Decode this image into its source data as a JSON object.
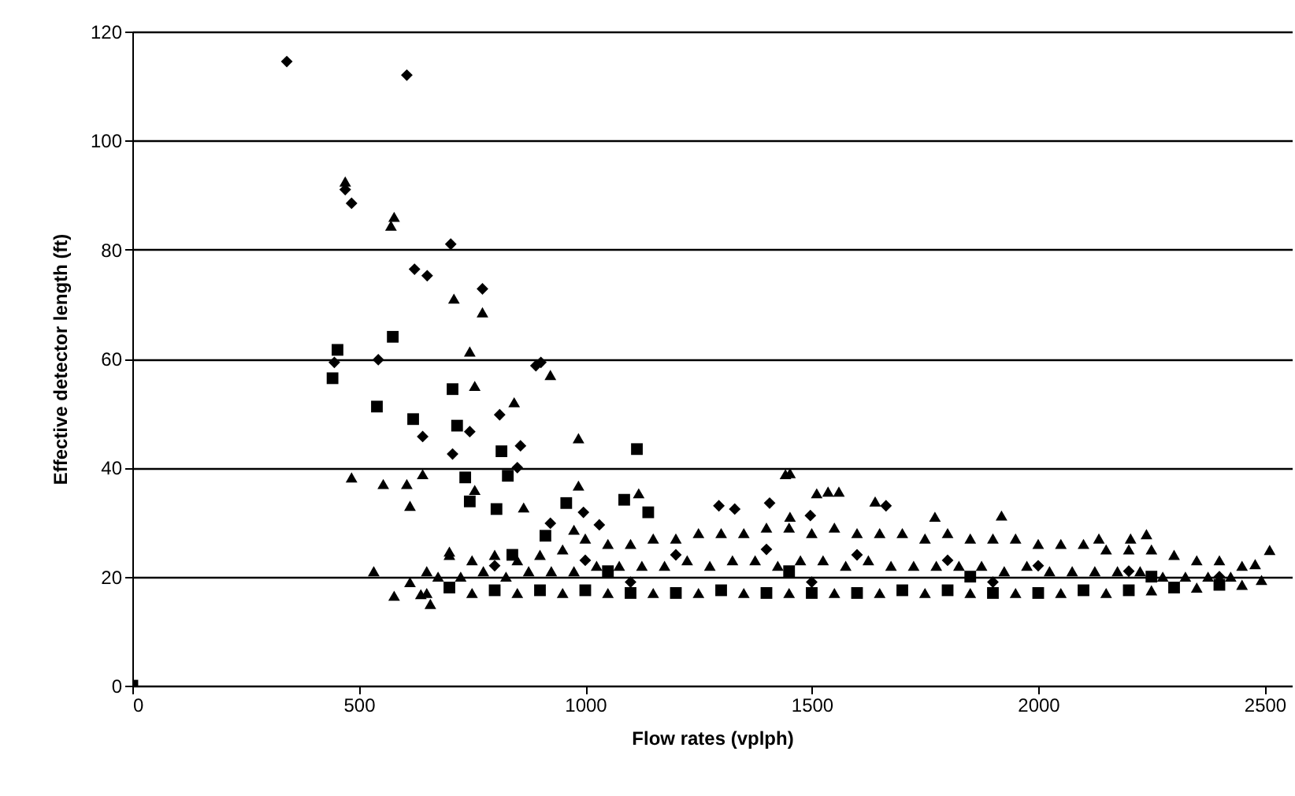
{
  "chart_data": {
    "type": "scatter",
    "xlabel": "Flow rates (vplph)",
    "ylabel": "Effective detector length (ft)",
    "xlim": [
      0,
      2560
    ],
    "xticks": [
      0,
      500,
      1000,
      1500,
      2000,
      2500
    ],
    "ylim": [
      0,
      120
    ],
    "yticks": [
      0,
      20,
      40,
      60,
      80,
      100,
      120
    ],
    "grid": "y",
    "series": [
      {
        "color": "#000000",
        "marker": "diamond",
        "x": [
          341,
          606,
          470,
          484,
          703,
          623,
          651,
          773,
          446,
          543,
          891,
          902,
          641,
          811,
          745,
          707,
          857,
          850,
          996,
          1031,
          923,
          1295,
          1330,
          1403,
          1407,
          1497,
          1664,
          800,
          1000,
          1200,
          1400,
          1600,
          1800,
          2000,
          2200,
          2400,
          1100,
          1500,
          1900
        ],
        "values": [
          114.5,
          112,
          91,
          88.5,
          81,
          76.4,
          75.2,
          72.8,
          59.3,
          59.8,
          58.7,
          59.3,
          45.7,
          49.7,
          46.6,
          42.5,
          44,
          40,
          31.8,
          29.5,
          29.8,
          33,
          32.4,
          null,
          33.5,
          31.2,
          33,
          22,
          23,
          24,
          25,
          24,
          23,
          22,
          21,
          20,
          19,
          19,
          19
        ]
      },
      {
        "color": "#000000",
        "marker": "square",
        "x": [
          0,
          575,
          453,
          442,
          707,
          540,
          620,
          717,
          1114,
          815,
          735,
          745,
          804,
          829,
          958,
          1086,
          1139,
          912,
          839,
          700,
          800,
          900,
          1000,
          1100,
          1200,
          1300,
          1400,
          1500,
          1600,
          1700,
          1800,
          1900,
          2000,
          2100,
          2200,
          2300,
          2400,
          1050,
          1450,
          1850,
          2250
        ],
        "values": [
          0,
          64,
          61.6,
          56.4,
          54.4,
          51.2,
          48.9,
          47.7,
          43.4,
          43,
          38.2,
          33.8,
          32.4,
          38.5,
          33.5,
          34.1,
          31.8,
          27.5,
          24,
          18,
          17.5,
          17.5,
          17.5,
          17,
          17,
          17.5,
          17,
          17,
          17,
          17.5,
          17.5,
          17,
          17,
          17.5,
          17.5,
          18,
          18.5,
          21,
          21,
          20,
          20
        ]
      },
      {
        "color": "#000000",
        "marker": "triangle",
        "x": [
          470,
          578,
          571,
          710,
          773,
          745,
          923,
          756,
          843,
          985,
          484,
          554,
          606,
          641,
          613,
          756,
          864,
          985,
          1118,
          975,
          1442,
          533,
          578,
          613,
          637,
          658,
          700,
          1452,
          1536,
          1560,
          1511,
          1640,
          1452,
          1919,
          1772,
          2239,
          2204,
          2134,
          2511,
          2479,
          2493,
          650,
          750,
          850,
          950,
          1050,
          1150,
          1250,
          1350,
          1450,
          1550,
          1650,
          1750,
          1850,
          1950,
          2050,
          2150,
          2250,
          2350,
          2450,
          700,
          800,
          900,
          1000,
          1100,
          1200,
          1300,
          1400,
          1500,
          1600,
          1700,
          1800,
          1900,
          2000,
          2100,
          2200,
          2300,
          2400,
          650,
          750,
          850,
          950,
          1050,
          1150,
          1250,
          1350,
          1450,
          1550,
          1650,
          1750,
          1850,
          1950,
          2050,
          2150,
          2250,
          2350,
          2450,
          675,
          725,
          775,
          825,
          875,
          925,
          975,
          1025,
          1075,
          1125,
          1175,
          1225,
          1275,
          1325,
          1375,
          1425,
          1475,
          1525,
          1575,
          1625,
          1675,
          1725,
          1775,
          1825,
          1875,
          1925,
          1975,
          2025,
          2075,
          2125,
          2175,
          2225,
          2275,
          2325,
          2375,
          2425
        ],
        "values": [
          92.5,
          86,
          84.4,
          71,
          68.5,
          61.3,
          57,
          55,
          52,
          45.4,
          38.2,
          37,
          37,
          38.8,
          33,
          35.9,
          32.7,
          36.7,
          35.3,
          28.6,
          38.8,
          21,
          16.5,
          19,
          16.8,
          15,
          24.6,
          39,
          35.6,
          35.6,
          35.3,
          33.8,
          31,
          31.2,
          31,
          27.8,
          27,
          27,
          24.9,
          22.3,
          19.4,
          21,
          23,
          23,
          25,
          26,
          27,
          28,
          28,
          29,
          29,
          28,
          27,
          27,
          27,
          26,
          25,
          25,
          23,
          22,
          24,
          24,
          24,
          27,
          26,
          27,
          28,
          29,
          28,
          28,
          28,
          28,
          27,
          26,
          26,
          25,
          24,
          23,
          17,
          17,
          17,
          17,
          17,
          17,
          17,
          17,
          17,
          17,
          17,
          17,
          17,
          17,
          17,
          17,
          17.5,
          18,
          18.5,
          20,
          20,
          21,
          20,
          21,
          21,
          21,
          22,
          22,
          22,
          22,
          23,
          22,
          23,
          23,
          22,
          23,
          23,
          22,
          23,
          22,
          22,
          22,
          22,
          22,
          21,
          22,
          21,
          21,
          21,
          21,
          21,
          20,
          20,
          20,
          20
        ]
      }
    ]
  }
}
